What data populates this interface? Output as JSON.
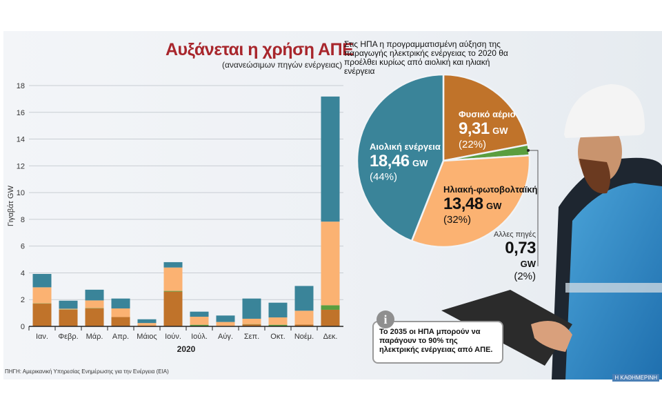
{
  "title": "Αυξάνεται η χρήση ΑΠΕ",
  "subtitle": "(ανανεώσιμων πηγών ενέργειας)",
  "intro": "Στις ΗΠΑ η προγραμματισμένη αύξηση της παραγωγής ηλεκτρικής ενέργειας το 2020 θα προέλθει κυρίως από αιολική και ηλιακή ενέργεια",
  "note": "Το 2035 οι ΗΠΑ μπορούν να παράγουν το 90% της ηλεκτρικής ενέργειας από ΑΠΕ.",
  "info_icon": "i",
  "source": "ΠΗΓΗ: Αμερικανική Υπηρεσίας Ενημέρωσης για την Ενέργεια (EIA)",
  "brand": "Η ΚΑΘΗΜΕΡΙΝΗ",
  "colors": {
    "gas": "#c0732a",
    "other": "#5a9e3f",
    "solar": "#fbb272",
    "wind": "#3a8499",
    "title": "#a8262c"
  },
  "chart_data": [
    {
      "type": "bar",
      "stacked": true,
      "xlabel": "2020",
      "ylabel": "Γιγαβάτ GW",
      "ylim": [
        0,
        18
      ],
      "yticks": [
        0,
        2,
        4,
        6,
        8,
        10,
        12,
        14,
        16,
        18
      ],
      "grid": true,
      "categories": [
        "Ιαν.",
        "Φεβρ.",
        "Μάρ.",
        "Απρ.",
        "Μάιος",
        "Ιούν.",
        "Ιούλ.",
        "Αύγ.",
        "Σεπ.",
        "Οκτ.",
        "Νοέμ.",
        "Δεκ."
      ],
      "series": [
        {
          "key": "gas",
          "values": [
            1.7,
            1.25,
            1.35,
            0.7,
            0.05,
            2.6,
            0.02,
            0.03,
            0.15,
            0.02,
            0.14,
            1.24
          ]
        },
        {
          "key": "other",
          "values": [
            0.02,
            0.02,
            0.02,
            0.0,
            0.0,
            0.05,
            0.1,
            0.0,
            0.02,
            0.1,
            0.0,
            0.34
          ]
        },
        {
          "key": "solar",
          "values": [
            1.2,
            0.05,
            0.57,
            0.64,
            0.2,
            1.75,
            0.6,
            0.3,
            0.4,
            0.55,
            1.03,
            6.25
          ]
        },
        {
          "key": "wind",
          "values": [
            1.0,
            0.6,
            0.8,
            0.74,
            0.28,
            0.4,
            0.38,
            0.48,
            1.51,
            1.1,
            1.85,
            9.35
          ]
        }
      ]
    },
    {
      "type": "pie",
      "slices": [
        {
          "key": "gas",
          "label": "Φυσικό αέριο",
          "value": "9,31",
          "unit": "GW",
          "percent": "(22%)",
          "share": 22
        },
        {
          "key": "other",
          "label": "Αλλες πηγές",
          "value": "0,73",
          "unit": "GW",
          "percent": "(2%)",
          "share": 2
        },
        {
          "key": "solar",
          "label": "Ηλιακή-φωτοβολταϊκή",
          "value": "13,48",
          "unit": "GW",
          "percent": "(32%)",
          "share": 32
        },
        {
          "key": "wind",
          "label": "Αιολική ενέργεια",
          "value": "18,46",
          "unit": "GW",
          "percent": "(44%)",
          "share": 44
        }
      ]
    }
  ]
}
